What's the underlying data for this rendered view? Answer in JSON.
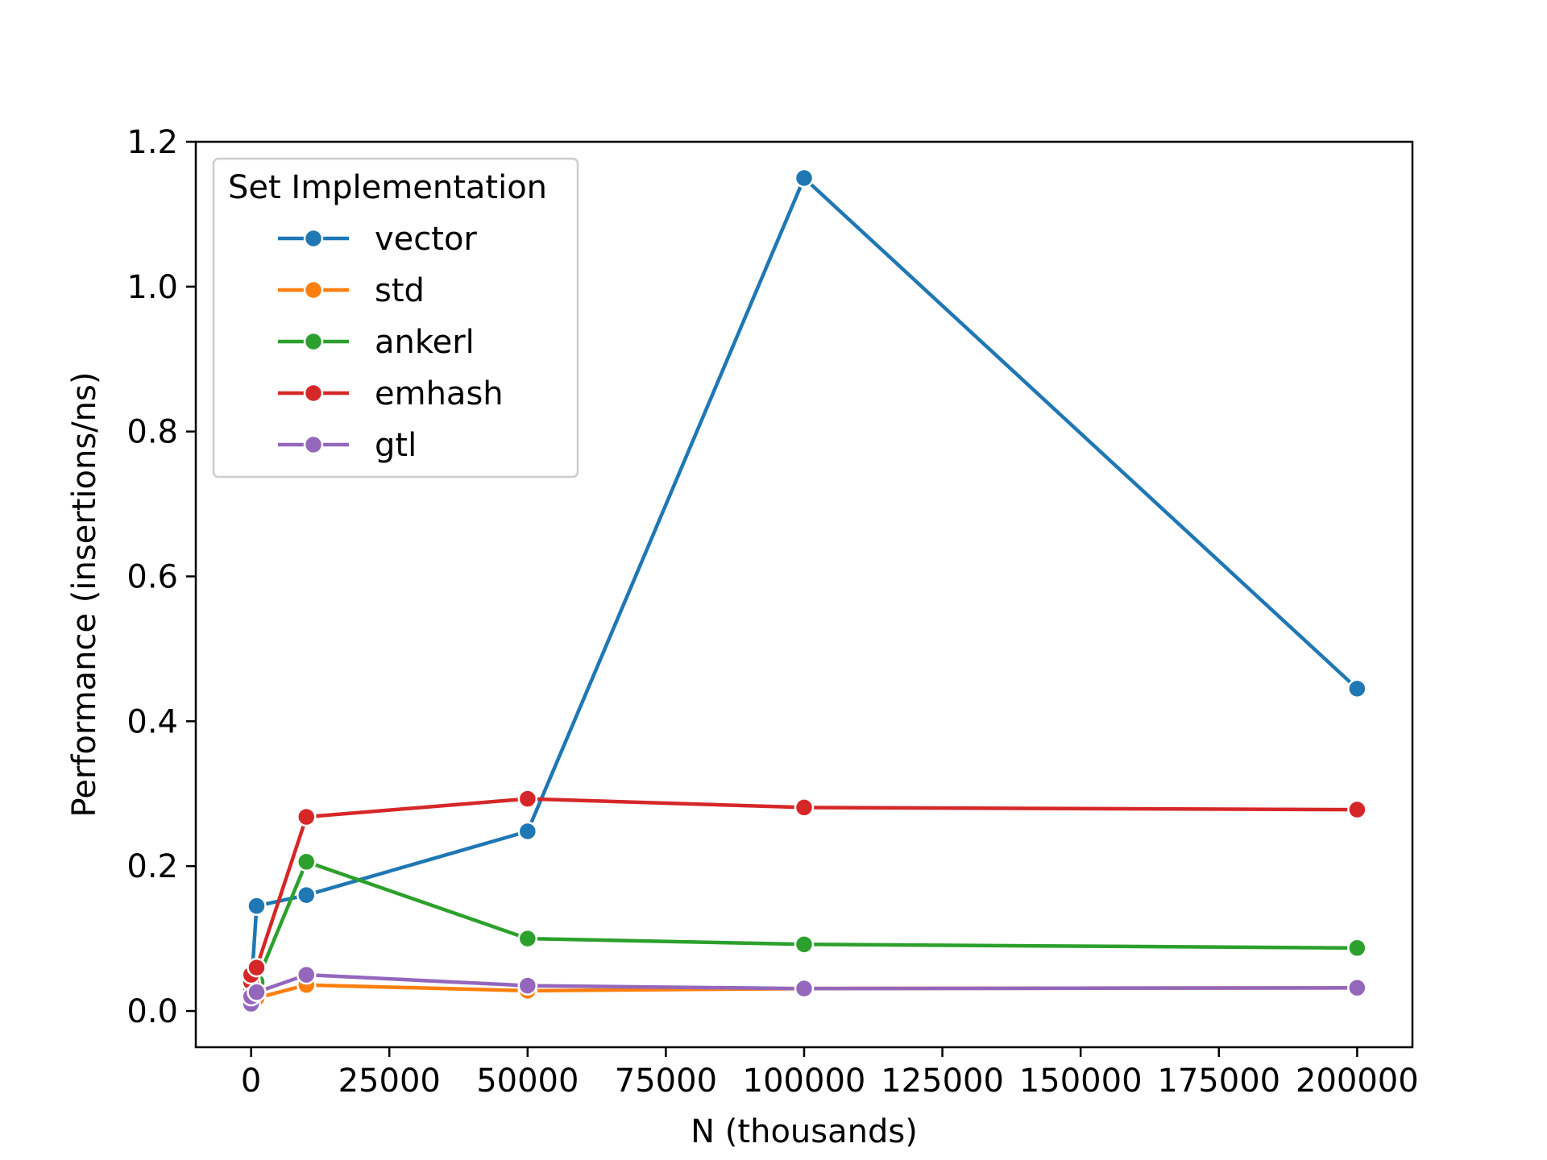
{
  "chart_data": {
    "type": "line",
    "xlabel": "N (thousands)",
    "ylabel": "Performance (insertions/ns)",
    "xlim": [
      -10000,
      210000
    ],
    "ylim": [
      -0.05,
      1.2
    ],
    "xticks": [
      0,
      25000,
      50000,
      75000,
      100000,
      125000,
      150000,
      175000,
      200000
    ],
    "yticks": [
      0.0,
      0.2,
      0.4,
      0.6,
      0.8,
      1.0,
      1.2
    ],
    "xtick_labels": [
      "0",
      "25000",
      "50000",
      "75000",
      "100000",
      "125000",
      "150000",
      "175000",
      "200000"
    ],
    "ytick_labels": [
      "0.0",
      "0.2",
      "0.4",
      "0.6",
      "0.8",
      "1.0",
      "1.2"
    ],
    "grid": false,
    "legend": {
      "title": "Set Implementation",
      "placement": "top-left"
    },
    "x": [
      1,
      10,
      1000,
      10000,
      50000,
      100000,
      200000
    ],
    "series": [
      {
        "name": "vector",
        "color": "#1f77b4",
        "values": [
          0.012,
          0.03,
          0.145,
          0.16,
          0.248,
          1.15,
          0.445
        ]
      },
      {
        "name": "std",
        "color": "#ff7f0e",
        "values": [
          0.015,
          0.02,
          0.018,
          0.036,
          0.028,
          0.031,
          0.032
        ]
      },
      {
        "name": "ankerl",
        "color": "#2ca02c",
        "values": [
          0.03,
          0.04,
          0.04,
          0.206,
          0.1,
          0.092,
          0.087
        ]
      },
      {
        "name": "emhash",
        "color": "#d62728",
        "values": [
          0.04,
          0.05,
          0.06,
          0.268,
          0.293,
          0.281,
          0.278
        ]
      },
      {
        "name": "gtl",
        "color": "#9467bd",
        "values": [
          0.01,
          0.02,
          0.026,
          0.05,
          0.035,
          0.031,
          0.032
        ]
      }
    ]
  }
}
